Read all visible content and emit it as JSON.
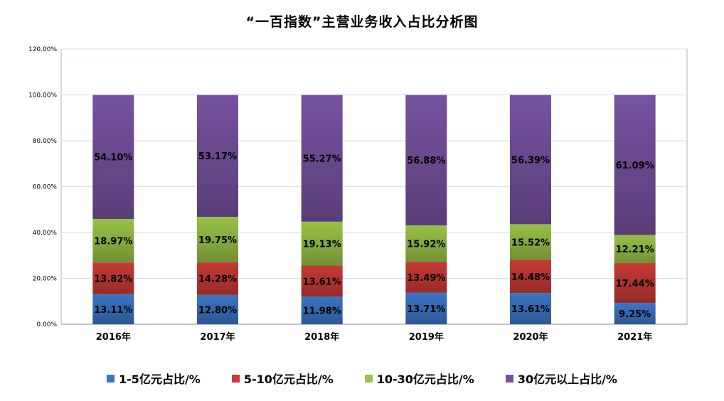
{
  "chart_data": {
    "type": "bar",
    "stacked": true,
    "title": "“一百指数”主营业务收入占比分析图",
    "xlabel": "",
    "ylabel": "",
    "categories": [
      "2016年",
      "2017年",
      "2018年",
      "2019年",
      "2020年",
      "2021年"
    ],
    "ylim": [
      0,
      120
    ],
    "yticks": [
      "0.00%",
      "20.00%",
      "40.00%",
      "60.00%",
      "80.00%",
      "100.00%",
      "120.00%"
    ],
    "grid": true,
    "legend": "bottom",
    "series": [
      {
        "name": "1-5亿元占比/%",
        "color": "#3a75c4",
        "values": [
          13.11,
          12.8,
          11.98,
          13.71,
          13.61,
          9.25
        ],
        "labels": [
          "13.11%",
          "12.80%",
          "11.98%",
          "13.71%",
          "13.61%",
          "9.25%"
        ]
      },
      {
        "name": "5-10亿元占比/%",
        "color": "#c63a36",
        "values": [
          13.82,
          14.28,
          13.61,
          13.49,
          14.48,
          17.44
        ],
        "labels": [
          "13.82%",
          "14.28%",
          "13.61%",
          "13.49%",
          "14.48%",
          "17.44%"
        ]
      },
      {
        "name": "10-30亿元占比/%",
        "color": "#98c146",
        "values": [
          18.97,
          19.75,
          19.13,
          15.92,
          15.52,
          12.21
        ],
        "labels": [
          "18.97%",
          "19.75%",
          "19.13%",
          "15.92%",
          "15.52%",
          "12.21%"
        ]
      },
      {
        "name": "30亿元以上占比/%",
        "color": "#7752a0",
        "values": [
          54.1,
          53.17,
          55.27,
          56.88,
          56.39,
          61.09
        ],
        "labels": [
          "54.10%",
          "53.17%",
          "55.27%",
          "56.88%",
          "56.39%",
          "61.09%"
        ]
      }
    ]
  }
}
